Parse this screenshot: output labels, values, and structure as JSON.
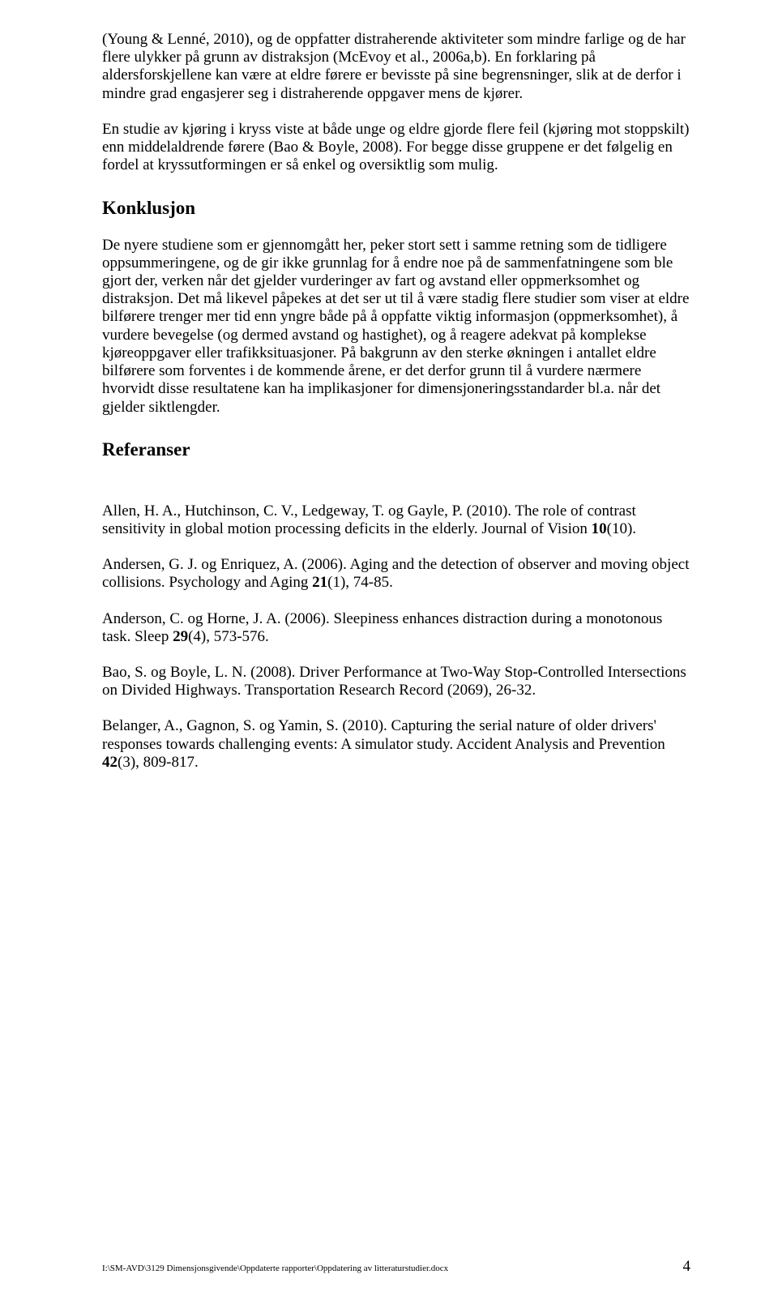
{
  "p1": "(Young & Lenné, 2010), og de oppfatter distraherende aktiviteter som mindre farlige og de har flere ulykker på grunn av distraksjon (McEvoy et al., 2006a,b). En forklaring på aldersforskjellene kan være at eldre førere er bevisste på sine begrensninger, slik at de derfor i mindre grad engasjerer seg i distraherende oppgaver mens de kjører.",
  "p2": "En studie av kjøring i kryss viste at både unge og eldre gjorde flere feil (kjøring mot stoppskilt) enn middelaldrende førere (Bao & Boyle, 2008). For begge disse gruppene er det følgelig en fordel at kryssutformingen er så enkel og oversiktlig som mulig.",
  "h1": "Konklusjon",
  "p3": "De nyere studiene som er gjennomgått her, peker stort sett i samme retning som de tidligere oppsummeringene, og de gir ikke grunnlag for å endre noe på de sammenfatningene som ble gjort der, verken når det gjelder vurderinger av fart og avstand eller oppmerksomhet og distraksjon. Det må likevel påpekes at det ser ut til å være stadig flere studier som viser at eldre bilførere trenger mer tid enn yngre både på å oppfatte viktig informasjon (oppmerksomhet), å vurdere bevegelse (og dermed avstand og hastighet), og å reagere adekvat på komplekse kjøreoppgaver eller trafikksituasjoner. På bakgrunn av den sterke økningen i antallet eldre bilførere som forventes i de kommende årene, er det derfor grunn til å vurdere nærmere hvorvidt disse resultatene kan ha implikasjoner for dimensjoneringsstandarder bl.a. når det gjelder siktlengder.",
  "h2": "Referanser",
  "r1a": "Allen, H. A., Hutchinson, C. V., Ledgeway, T. og Gayle, P. (2010). The role of contrast sensitivity in global motion processing deficits in the elderly. Journal of Vision ",
  "r1b": "10",
  "r1c": "(10).",
  "r2a": "Andersen, G. J. og Enriquez, A. (2006). Aging and the detection of observer and moving object collisions. Psychology and Aging ",
  "r2b": "21",
  "r2c": "(1), 74-85.",
  "r3a": "Anderson, C. og Horne, J. A. (2006). Sleepiness enhances distraction during a monotonous task. Sleep ",
  "r3b": "29",
  "r3c": "(4), 573-576.",
  "r4": "Bao, S. og Boyle, L. N. (2008). Driver Performance at Two-Way Stop-Controlled Intersections on Divided Highways. Transportation Research Record (2069), 26-32.",
  "r5a": "Belanger, A., Gagnon, S. og Yamin, S. (2010). Capturing the serial nature of older drivers' responses towards challenging events: A simulator study. Accident Analysis and Prevention ",
  "r5b": "42",
  "r5c": "(3), 809-817.",
  "footerPath": "I:\\SM-AVD\\3129 Dimensjonsgivende\\Oppdaterte rapporter\\Oppdatering av litteraturstudier.docx",
  "footerPage": "4"
}
